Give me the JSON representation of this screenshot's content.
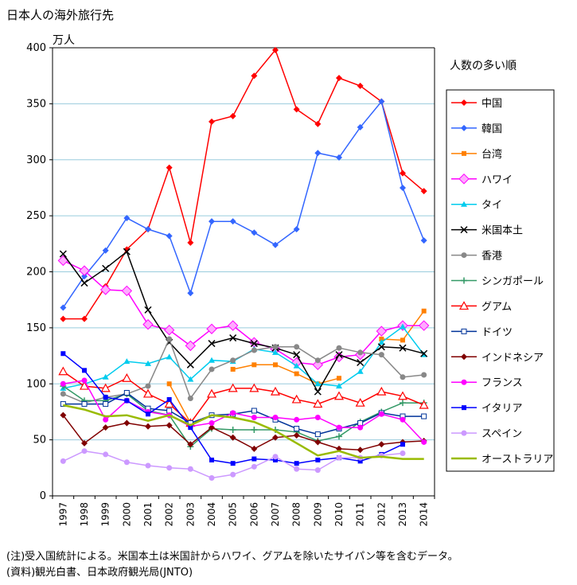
{
  "title": "日本人の海外旅行先",
  "unit": "万人",
  "legend_title": "人数の多い順",
  "notes": [
    "(注)受入国統計による。米国本土は米国計からハワイ、グアムを除いたサイパン等を含むデータ。",
    "(資料)観光白書、日本政府観光局(JNTO)"
  ],
  "chart_data": {
    "type": "line",
    "title": "日本人の海外旅行先",
    "ylabel": "万人",
    "xlabel": "",
    "ylim": [
      0,
      400
    ],
    "yticks": [
      0,
      50,
      100,
      150,
      200,
      250,
      300,
      350,
      400
    ],
    "grid": true,
    "legend": "right",
    "x": [
      "1997",
      "1998",
      "1999",
      "2000",
      "2001",
      "2002",
      "2003",
      "2004",
      "2005",
      "2006",
      "2007",
      "2008",
      "2009",
      "2010",
      "2011",
      "2012",
      "2013",
      "2014"
    ],
    "series": [
      {
        "name": "中国",
        "color": "#ff0000",
        "marker": "diamond",
        "values": [
          158,
          158,
          187,
          220,
          238,
          293,
          226,
          334,
          339,
          375,
          398,
          345,
          332,
          373,
          366,
          352,
          288,
          272
        ]
      },
      {
        "name": "韓国",
        "color": "#3366ff",
        "marker": "diamond",
        "values": [
          168,
          196,
          219,
          248,
          238,
          232,
          181,
          245,
          245,
          235,
          224,
          238,
          306,
          302,
          329,
          352,
          275,
          228
        ]
      },
      {
        "name": "台湾",
        "color": "#ff8000",
        "marker": "square",
        "values": [
          null,
          null,
          null,
          null,
          null,
          100,
          65,
          null,
          113,
          117,
          117,
          109,
          100,
          105,
          null,
          140,
          139,
          165
        ]
      },
      {
        "name": "ハワイ",
        "color": "#ff00ff",
        "marker": "diamond-big",
        "values": [
          210,
          201,
          184,
          183,
          153,
          148,
          134,
          149,
          152,
          137,
          131,
          119,
          117,
          124,
          126,
          147,
          152,
          152
        ]
      },
      {
        "name": "タイ",
        "color": "#00ccee",
        "marker": "triangle",
        "values": [
          96,
          100,
          106,
          120,
          118,
          124,
          104,
          121,
          120,
          131,
          128,
          116,
          100,
          98,
          111,
          137,
          151,
          126
        ]
      },
      {
        "name": "米国本土",
        "color": "#000000",
        "marker": "x",
        "values": [
          216,
          190,
          203,
          218,
          166,
          137,
          117,
          136,
          141,
          136,
          132,
          126,
          93,
          126,
          119,
          133,
          132,
          127
        ]
      },
      {
        "name": "香港",
        "color": "#888888",
        "marker": "dot",
        "values": [
          91,
          83,
          88,
          91,
          98,
          140,
          87,
          113,
          121,
          130,
          133,
          133,
          121,
          132,
          128,
          126,
          106,
          108
        ]
      },
      {
        "name": "シンガポール",
        "color": "#339966",
        "marker": "cross",
        "values": [
          98,
          85,
          85,
          91,
          76,
          72,
          44,
          60,
          59,
          59,
          59,
          57,
          49,
          53,
          66,
          75,
          83,
          83
        ]
      },
      {
        "name": "グアム",
        "color": "#ff0000",
        "marker": "triangle-open",
        "values": [
          111,
          98,
          96,
          105,
          91,
          82,
          65,
          91,
          96,
          96,
          93,
          86,
          82,
          89,
          83,
          93,
          89,
          81
        ]
      },
      {
        "name": "ドイツ",
        "color": "#003399",
        "marker": "square-open",
        "values": [
          82,
          82,
          82,
          92,
          78,
          76,
          65,
          72,
          73,
          76,
          68,
          60,
          55,
          60,
          65,
          74,
          71,
          71
        ]
      },
      {
        "name": "インドネシア",
        "color": "#800000",
        "marker": "diamond",
        "values": [
          72,
          47,
          61,
          65,
          62,
          63,
          46,
          61,
          52,
          42,
          52,
          54,
          48,
          42,
          41,
          46,
          48,
          49
        ]
      },
      {
        "name": "フランス",
        "color": "#ff00ff",
        "marker": "dot",
        "values": [
          100,
          103,
          68,
          85,
          75,
          72,
          62,
          65,
          74,
          70,
          70,
          68,
          70,
          61,
          61,
          73,
          68,
          48
        ]
      },
      {
        "name": "イタリア",
        "color": "#0000ff",
        "marker": "square",
        "values": [
          127,
          112,
          88,
          85,
          73,
          86,
          61,
          32,
          29,
          33,
          32,
          29,
          32,
          34,
          31,
          37,
          46,
          null
        ]
      },
      {
        "name": "スペイン",
        "color": "#cc99ff",
        "marker": "dot",
        "values": [
          31,
          40,
          37,
          30,
          27,
          25,
          24,
          16,
          19,
          26,
          35,
          24,
          23,
          34,
          34,
          36,
          38,
          null
        ]
      },
      {
        "name": "オーストラリア",
        "color": "#99bb00",
        "marker": "none",
        "values": [
          81,
          77,
          71,
          72,
          67,
          72,
          63,
          72,
          70,
          66,
          58,
          47,
          36,
          40,
          34,
          35,
          33,
          33
        ]
      }
    ]
  }
}
